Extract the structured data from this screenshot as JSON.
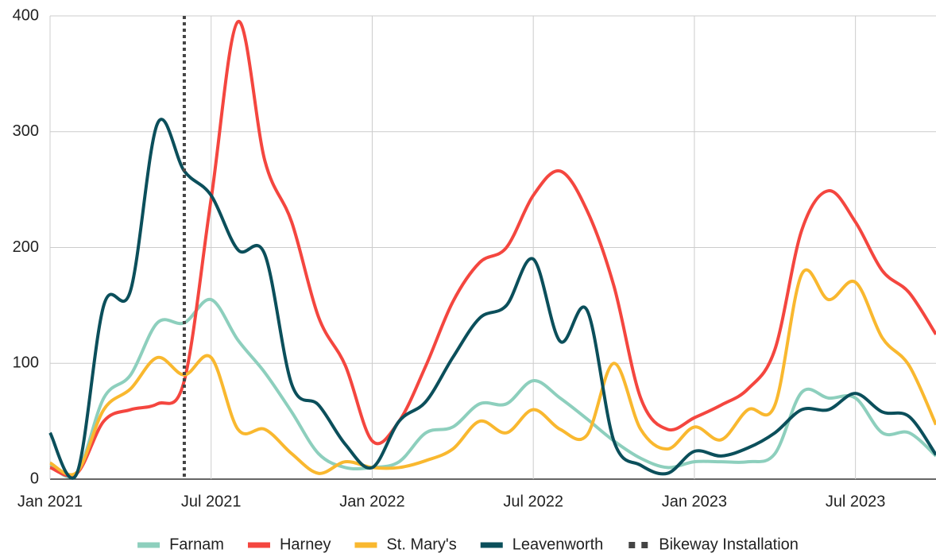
{
  "chart_data": {
    "type": "line",
    "x": [
      "2021-01",
      "2021-02",
      "2021-03",
      "2021-04",
      "2021-05",
      "2021-06",
      "2021-07",
      "2021-08",
      "2021-09",
      "2021-10",
      "2021-11",
      "2021-12",
      "2022-01",
      "2022-02",
      "2022-03",
      "2022-04",
      "2022-05",
      "2022-06",
      "2022-07",
      "2022-08",
      "2022-09",
      "2022-10",
      "2022-11",
      "2022-12",
      "2023-01",
      "2023-02",
      "2023-03",
      "2023-04",
      "2023-05",
      "2023-06",
      "2023-07",
      "2023-08",
      "2023-09",
      "2023-10"
    ],
    "series": [
      {
        "name": "Farnam",
        "color": "#8dcfbd",
        "values": [
          12,
          5,
          70,
          90,
          135,
          135,
          155,
          120,
          92,
          58,
          22,
          10,
          10,
          15,
          40,
          45,
          65,
          65,
          85,
          70,
          52,
          33,
          18,
          10,
          15,
          15,
          15,
          22,
          75,
          70,
          70,
          40,
          40,
          20
        ]
      },
      {
        "name": "Harney",
        "color": "#f4463f",
        "values": [
          10,
          5,
          50,
          60,
          65,
          85,
          242,
          395,
          275,
          222,
          140,
          98,
          33,
          50,
          98,
          153,
          187,
          200,
          245,
          266,
          232,
          167,
          70,
          43,
          53,
          64,
          78,
          112,
          215,
          249,
          222,
          180,
          161,
          125
        ]
      },
      {
        "name": "St. Mary's",
        "color": "#f9b82f",
        "values": [
          14,
          6,
          60,
          78,
          105,
          90,
          105,
          43,
          43,
          22,
          5,
          15,
          10,
          10,
          16,
          26,
          50,
          40,
          60,
          43,
          38,
          100,
          43,
          26,
          45,
          34,
          60,
          64,
          177,
          155,
          170,
          122,
          98,
          47
        ]
      },
      {
        "name": "Leavenworth",
        "color": "#0b4f5b",
        "values": [
          40,
          5,
          150,
          163,
          307,
          266,
          245,
          198,
          194,
          82,
          64,
          30,
          10,
          50,
          67,
          105,
          139,
          150,
          190,
          119,
          146,
          33,
          12,
          5,
          24,
          20,
          27,
          40,
          60,
          60,
          74,
          58,
          54,
          21
        ]
      }
    ],
    "annotation": {
      "name": "Bikeway Installation",
      "x": "2021-06",
      "color": "#444444"
    },
    "xlim": [
      "2021-01",
      "2023-10"
    ],
    "xticks": [
      {
        "value": "2021-01",
        "label": "Jan 2021"
      },
      {
        "value": "2021-07",
        "label": "Jul 2021"
      },
      {
        "value": "2022-01",
        "label": "Jan 2022"
      },
      {
        "value": "2022-07",
        "label": "Jul 2022"
      },
      {
        "value": "2023-01",
        "label": "Jan 2023"
      },
      {
        "value": "2023-07",
        "label": "Jul 2023"
      }
    ],
    "ylim": [
      0,
      400
    ],
    "yticks": [
      0,
      100,
      200,
      300,
      400
    ],
    "grid": true
  }
}
